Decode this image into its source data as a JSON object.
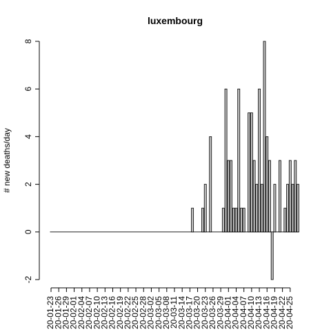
{
  "chart_data": {
    "type": "bar",
    "title": "luxembourg",
    "xlabel": "",
    "ylabel": "# new deaths/day",
    "ylim": [
      -2,
      8
    ],
    "yticks": [
      -2,
      0,
      2,
      4,
      6,
      8
    ],
    "x_tick_labels": [
      "20-01-23",
      "20-01-26",
      "20-01-29",
      "20-02-01",
      "20-02-04",
      "20-02-07",
      "20-02-10",
      "20-02-13",
      "20-02-16",
      "20-02-19",
      "20-02-22",
      "20-02-25",
      "20-02-28",
      "20-03-02",
      "20-03-05",
      "20-03-08",
      "20-03-11",
      "20-03-14",
      "20-03-17",
      "20-03-20",
      "20-03-23",
      "20-03-26",
      "20-03-29",
      "20-04-01",
      "20-04-04",
      "20-04-07",
      "20-04-10",
      "20-04-13",
      "20-04-16",
      "20-04-19",
      "20-04-22",
      "20-04-25"
    ],
    "start_date": "2020-01-23",
    "values": [
      0,
      0,
      0,
      0,
      0,
      0,
      0,
      0,
      0,
      0,
      0,
      0,
      0,
      0,
      0,
      0,
      0,
      0,
      0,
      0,
      0,
      0,
      0,
      0,
      0,
      0,
      0,
      0,
      0,
      0,
      0,
      0,
      0,
      0,
      0,
      0,
      0,
      0,
      0,
      0,
      0,
      0,
      0,
      0,
      0,
      0,
      0,
      0,
      0,
      0,
      0,
      0,
      0,
      0,
      0,
      1,
      0,
      0,
      0,
      1,
      2,
      0,
      4,
      0,
      0,
      0,
      0,
      1,
      6,
      3,
      3,
      1,
      1,
      6,
      1,
      1,
      0,
      5,
      5,
      3,
      2,
      6,
      2,
      8,
      4,
      3,
      -2,
      2,
      0,
      3,
      0,
      1,
      2,
      3,
      2,
      3,
      2
    ]
  }
}
